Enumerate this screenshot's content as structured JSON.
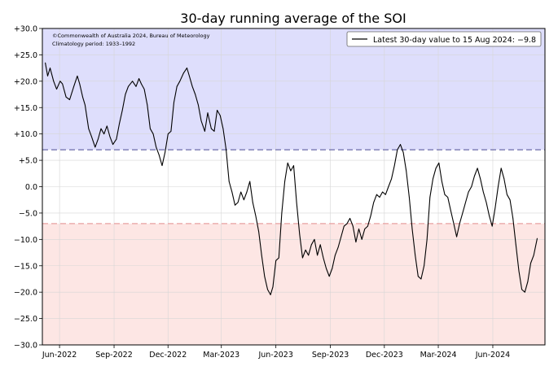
{
  "chart_data": {
    "type": "line",
    "title": "30-day running average of the SOI",
    "copyright": "©Commonwealth of Australia 2024, Bureau of Meteorology",
    "climatology": "Climatology period: 1933–1992",
    "legend": {
      "label": "Latest 30-day value to 15 Aug 2024: −9.8",
      "placement": "top-right"
    },
    "ylim": [
      -30,
      30
    ],
    "yticks": [
      30,
      25,
      20,
      15,
      10,
      5,
      0,
      -5,
      -10,
      -15,
      -20,
      -25,
      -30
    ],
    "ytick_labels": [
      "+30.0",
      "+25.0",
      "+20.0",
      "+15.0",
      "+10.0",
      "+5.0",
      "0.0",
      "−5.0",
      "−10.0",
      "−15.0",
      "−20.0",
      "−25.0",
      "−30.0"
    ],
    "xlim": [
      "2022-05-03",
      "2024-08-28"
    ],
    "xticks": [
      "2022-06-01",
      "2022-09-01",
      "2022-12-01",
      "2023-03-01",
      "2023-06-01",
      "2023-09-01",
      "2023-12-01",
      "2024-03-01",
      "2024-06-01"
    ],
    "xtick_labels": [
      "Jun-2022",
      "Sep-2022",
      "Dec-2022",
      "Mar-2023",
      "Jun-2023",
      "Sep-2023",
      "Dec-2023",
      "Mar-2024",
      "Jun-2024"
    ],
    "grid": true,
    "thresholds": [
      {
        "value": 7,
        "color": "#6a6aa8"
      },
      {
        "value": -7,
        "color": "#e8a0a0"
      }
    ],
    "bands": [
      {
        "from": 7,
        "to": 30,
        "color": "#dedefc"
      },
      {
        "from": -30,
        "to": -7,
        "color": "#fde6e4"
      }
    ],
    "series": [
      {
        "color": "#000000",
        "points": [
          [
            "2022-05-08",
            23.5
          ],
          [
            "2022-05-12",
            21.0
          ],
          [
            "2022-05-16",
            22.5
          ],
          [
            "2022-05-22",
            20.0
          ],
          [
            "2022-05-27",
            18.5
          ],
          [
            "2022-06-02",
            20.0
          ],
          [
            "2022-06-06",
            19.5
          ],
          [
            "2022-06-12",
            17.0
          ],
          [
            "2022-06-18",
            16.5
          ],
          [
            "2022-06-25",
            19.0
          ],
          [
            "2022-07-01",
            21.0
          ],
          [
            "2022-07-05",
            19.5
          ],
          [
            "2022-07-10",
            17.0
          ],
          [
            "2022-07-14",
            15.5
          ],
          [
            "2022-07-20",
            11.0
          ],
          [
            "2022-07-25",
            9.5
          ],
          [
            "2022-07-31",
            7.5
          ],
          [
            "2022-08-05",
            9.0
          ],
          [
            "2022-08-10",
            11.0
          ],
          [
            "2022-08-15",
            10.0
          ],
          [
            "2022-08-20",
            11.5
          ],
          [
            "2022-08-25",
            9.5
          ],
          [
            "2022-08-30",
            8.0
          ],
          [
            "2022-09-05",
            9.0
          ],
          [
            "2022-09-10",
            12.0
          ],
          [
            "2022-09-15",
            14.5
          ],
          [
            "2022-09-20",
            17.5
          ],
          [
            "2022-09-25",
            19.0
          ],
          [
            "2022-10-02",
            20.0
          ],
          [
            "2022-10-08",
            19.0
          ],
          [
            "2022-10-13",
            20.5
          ],
          [
            "2022-10-17",
            19.5
          ],
          [
            "2022-10-22",
            18.5
          ],
          [
            "2022-10-27",
            15.5
          ],
          [
            "2022-11-01",
            11.0
          ],
          [
            "2022-11-06",
            10.0
          ],
          [
            "2022-11-11",
            7.5
          ],
          [
            "2022-11-16",
            6.0
          ],
          [
            "2022-11-21",
            4.0
          ],
          [
            "2022-11-26",
            6.5
          ],
          [
            "2022-12-01",
            10.0
          ],
          [
            "2022-12-06",
            10.5
          ],
          [
            "2022-12-11",
            16.0
          ],
          [
            "2022-12-16",
            19.0
          ],
          [
            "2022-12-21",
            20.0
          ],
          [
            "2022-12-27",
            21.5
          ],
          [
            "2023-01-02",
            22.5
          ],
          [
            "2023-01-06",
            21.0
          ],
          [
            "2023-01-11",
            19.0
          ],
          [
            "2023-01-16",
            17.5
          ],
          [
            "2023-01-21",
            15.5
          ],
          [
            "2023-01-26",
            12.5
          ],
          [
            "2023-02-01",
            10.5
          ],
          [
            "2023-02-06",
            14.0
          ],
          [
            "2023-02-12",
            11.0
          ],
          [
            "2023-02-17",
            10.5
          ],
          [
            "2023-02-22",
            14.5
          ],
          [
            "2023-02-27",
            13.5
          ],
          [
            "2023-03-04",
            11.0
          ],
          [
            "2023-03-09",
            7.0
          ],
          [
            "2023-03-14",
            1.0
          ],
          [
            "2023-03-19",
            -1.0
          ],
          [
            "2023-03-24",
            -3.5
          ],
          [
            "2023-03-29",
            -3.0
          ],
          [
            "2023-04-03",
            -1.0
          ],
          [
            "2023-04-08",
            -2.5
          ],
          [
            "2023-04-13",
            -1.0
          ],
          [
            "2023-04-18",
            1.0
          ],
          [
            "2023-04-23",
            -3.0
          ],
          [
            "2023-04-28",
            -5.5
          ],
          [
            "2023-05-03",
            -8.5
          ],
          [
            "2023-05-08",
            -13.0
          ],
          [
            "2023-05-13",
            -17.0
          ],
          [
            "2023-05-18",
            -19.5
          ],
          [
            "2023-05-23",
            -20.5
          ],
          [
            "2023-05-27",
            -19.0
          ],
          [
            "2023-06-01",
            -14.0
          ],
          [
            "2023-06-06",
            -13.5
          ],
          [
            "2023-06-11",
            -5.0
          ],
          [
            "2023-06-16",
            1.0
          ],
          [
            "2023-06-21",
            4.5
          ],
          [
            "2023-06-26",
            3.0
          ],
          [
            "2023-07-01",
            4.0
          ],
          [
            "2023-07-06",
            -3.0
          ],
          [
            "2023-07-11",
            -9.0
          ],
          [
            "2023-07-16",
            -13.5
          ],
          [
            "2023-07-21",
            -12.0
          ],
          [
            "2023-07-26",
            -13.0
          ],
          [
            "2023-07-31",
            -11.0
          ],
          [
            "2023-08-05",
            -10.0
          ],
          [
            "2023-08-10",
            -13.0
          ],
          [
            "2023-08-15",
            -11.0
          ],
          [
            "2023-08-20",
            -13.5
          ],
          [
            "2023-08-25",
            -15.5
          ],
          [
            "2023-08-30",
            -17.0
          ],
          [
            "2023-09-04",
            -15.5
          ],
          [
            "2023-09-09",
            -13.0
          ],
          [
            "2023-09-14",
            -11.5
          ],
          [
            "2023-09-19",
            -9.5
          ],
          [
            "2023-09-24",
            -7.5
          ],
          [
            "2023-09-29",
            -7.0
          ],
          [
            "2023-10-04",
            -6.0
          ],
          [
            "2023-10-09",
            -7.5
          ],
          [
            "2023-10-14",
            -10.5
          ],
          [
            "2023-10-19",
            -8.0
          ],
          [
            "2023-10-24",
            -10.0
          ],
          [
            "2023-10-29",
            -8.0
          ],
          [
            "2023-11-03",
            -7.5
          ],
          [
            "2023-11-08",
            -5.5
          ],
          [
            "2023-11-13",
            -3.0
          ],
          [
            "2023-11-18",
            -1.5
          ],
          [
            "2023-11-23",
            -2.0
          ],
          [
            "2023-11-28",
            -1.0
          ],
          [
            "2023-12-03",
            -1.5
          ],
          [
            "2023-12-08",
            0.0
          ],
          [
            "2023-12-13",
            1.5
          ],
          [
            "2023-12-18",
            4.0
          ],
          [
            "2023-12-23",
            7.0
          ],
          [
            "2023-12-28",
            8.0
          ],
          [
            "2024-01-02",
            6.5
          ],
          [
            "2024-01-07",
            3.0
          ],
          [
            "2024-01-12",
            -2.0
          ],
          [
            "2024-01-17",
            -8.0
          ],
          [
            "2024-01-22",
            -13.0
          ],
          [
            "2024-01-27",
            -17.0
          ],
          [
            "2024-02-01",
            -17.5
          ],
          [
            "2024-02-06",
            -15.0
          ],
          [
            "2024-02-11",
            -10.0
          ],
          [
            "2024-02-16",
            -2.0
          ],
          [
            "2024-02-21",
            1.5
          ],
          [
            "2024-02-26",
            3.5
          ],
          [
            "2024-03-02",
            4.5
          ],
          [
            "2024-03-07",
            1.0
          ],
          [
            "2024-03-12",
            -1.5
          ],
          [
            "2024-03-17",
            -2.0
          ],
          [
            "2024-03-22",
            -4.5
          ],
          [
            "2024-03-27",
            -7.0
          ],
          [
            "2024-04-01",
            -9.5
          ],
          [
            "2024-04-06",
            -7.0
          ],
          [
            "2024-04-11",
            -5.0
          ],
          [
            "2024-04-16",
            -3.0
          ],
          [
            "2024-04-21",
            -1.0
          ],
          [
            "2024-04-26",
            0.0
          ],
          [
            "2024-05-01",
            2.0
          ],
          [
            "2024-05-06",
            3.5
          ],
          [
            "2024-05-11",
            1.5
          ],
          [
            "2024-05-16",
            -1.0
          ],
          [
            "2024-05-21",
            -3.0
          ],
          [
            "2024-05-26",
            -5.5
          ],
          [
            "2024-05-31",
            -7.5
          ],
          [
            "2024-06-05",
            -4.0
          ],
          [
            "2024-06-10",
            0.0
          ],
          [
            "2024-06-15",
            3.5
          ],
          [
            "2024-06-20",
            1.5
          ],
          [
            "2024-06-25",
            -1.5
          ],
          [
            "2024-06-30",
            -2.5
          ],
          [
            "2024-07-05",
            -6.0
          ],
          [
            "2024-07-10",
            -11.0
          ],
          [
            "2024-07-15",
            -16.0
          ],
          [
            "2024-07-20",
            -19.5
          ],
          [
            "2024-07-25",
            -20.0
          ],
          [
            "2024-07-30",
            -18.0
          ],
          [
            "2024-08-04",
            -14.5
          ],
          [
            "2024-08-09",
            -13.0
          ],
          [
            "2024-08-15",
            -9.8
          ]
        ]
      }
    ]
  }
}
